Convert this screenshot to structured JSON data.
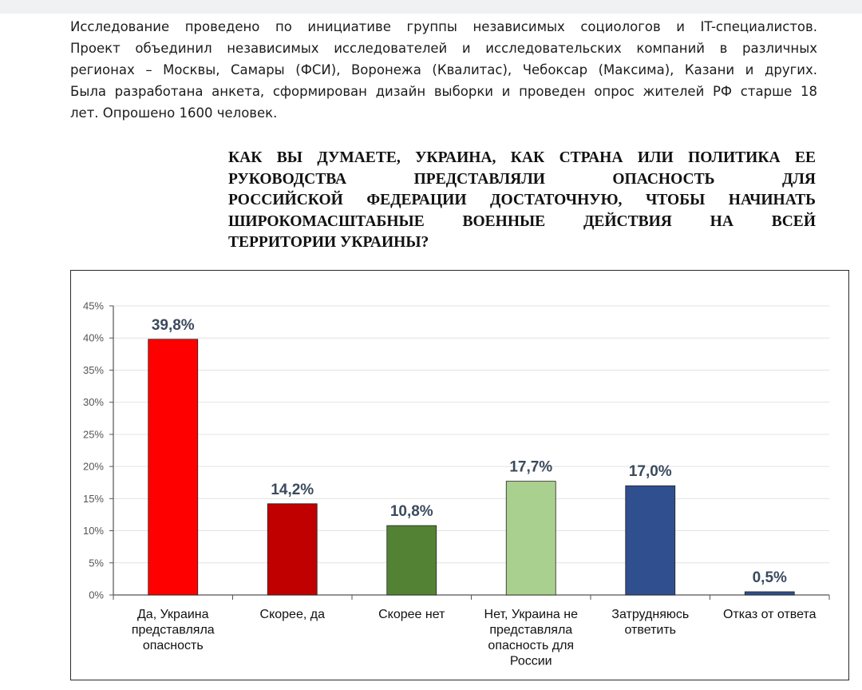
{
  "intro_lines": [
    "Исследование проведено по инициативе группы независимых социологов и IT-специалистов.",
    "Проект объединил независимых исследователей и исследовательских компаний в различных",
    "регионах – Москвы, Самары (ФСИ), Воронежа (Квалитас), Чебоксар (Максима), Казани и других.",
    "Была разработана анкета, сформирован дизайн выборки и проведен опрос жителей РФ старше 18",
    "лет. Опрошено 1600 человек."
  ],
  "question_lines": [
    "КАК ВЫ ДУМАЕТЕ, УКРАИНА, КАК СТРАНА ИЛИ ПОЛИТИКА ЕЕ",
    "РУКОВОДСТВА ПРЕДСТАВЛЯЛИ ОПАСНОСТЬ ДЛЯ",
    "РОССИЙСКОЙ ФЕДЕРАЦИИ ДОСТАТОЧНУЮ, ЧТОБЫ НАЧИНАТЬ",
    "ШИРОКОМАСШТАБНЫЕ ВОЕННЫЕ ДЕЙСТВИЯ НА ВСЕЙ",
    "ТЕРРИТОРИИ УКРАИНЫ?"
  ],
  "chart_data": {
    "type": "bar",
    "title": "",
    "xlabel": "",
    "ylabel": "",
    "ylim": [
      0,
      45
    ],
    "y_ticks": [
      "0%",
      "5%",
      "10%",
      "15%",
      "20%",
      "25%",
      "30%",
      "35%",
      "40%",
      "45%"
    ],
    "grid": true,
    "categories": [
      [
        "Да, Украина",
        "представляла",
        "опасность"
      ],
      [
        "Скорее, да"
      ],
      [
        "Скорее нет"
      ],
      [
        "Нет, Украина не",
        "представляла",
        "опасность для",
        "России"
      ],
      [
        "Затрудняюсь",
        "ответить"
      ],
      [
        "Отказ от ответа"
      ]
    ],
    "values": [
      39.8,
      14.2,
      10.8,
      17.7,
      17.0,
      0.5
    ],
    "value_labels": [
      "39,8%",
      "14,2%",
      "10,8%",
      "17,7%",
      "17,0%",
      "0,5%"
    ],
    "colors": [
      "#ff0000",
      "#c00000",
      "#548235",
      "#a9d08e",
      "#2f4f8f",
      "#2f4f8f"
    ]
  }
}
